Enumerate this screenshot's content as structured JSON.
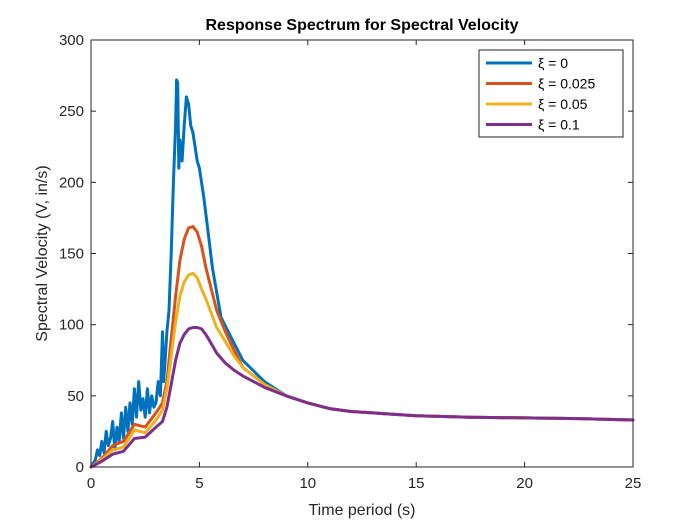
{
  "chart_data": {
    "type": "line",
    "title": "Response Spectrum for Spectral Velocity",
    "xlabel": "Time period (s)",
    "ylabel": "Spectral Velocity (V, in/s)",
    "xlim": [
      0,
      25
    ],
    "ylim": [
      0,
      300
    ],
    "xticks": [
      0,
      5,
      10,
      15,
      20,
      25
    ],
    "yticks": [
      0,
      50,
      100,
      150,
      200,
      250,
      300
    ],
    "grid": false,
    "legend_position": "top-right",
    "series": [
      {
        "name": "ξ = 0",
        "color": "#0072BD",
        "x": [
          0,
          0.2,
          0.3,
          0.4,
          0.5,
          0.6,
          0.7,
          0.8,
          0.9,
          1.0,
          1.1,
          1.2,
          1.3,
          1.4,
          1.5,
          1.6,
          1.7,
          1.8,
          1.9,
          2.0,
          2.1,
          2.2,
          2.3,
          2.4,
          2.5,
          2.6,
          2.7,
          2.8,
          2.9,
          3.0,
          3.1,
          3.2,
          3.3,
          3.35,
          3.4,
          3.5,
          3.6,
          3.7,
          3.8,
          3.9,
          3.95,
          4.0,
          4.05,
          4.1,
          4.2,
          4.3,
          4.4,
          4.5,
          4.6,
          4.7,
          4.8,
          4.9,
          5.0,
          5.2,
          5.4,
          5.6,
          6.0,
          6.5,
          7.0,
          8.0,
          9.0,
          10.0,
          11.0,
          12.0,
          13.0,
          15.0,
          17.5,
          20.0,
          22.5,
          25.0
        ],
        "values": [
          0,
          5,
          12,
          8,
          18,
          10,
          25,
          15,
          20,
          32,
          12,
          28,
          18,
          38,
          20,
          42,
          25,
          45,
          30,
          55,
          35,
          60,
          40,
          48,
          35,
          55,
          38,
          50,
          42,
          45,
          60,
          50,
          95,
          60,
          70,
          95,
          110,
          150,
          200,
          240,
          272,
          270,
          210,
          230,
          215,
          240,
          260,
          255,
          240,
          235,
          225,
          215,
          210,
          190,
          165,
          140,
          105,
          90,
          75,
          60,
          50,
          45,
          41,
          39,
          38,
          36,
          35,
          34.5,
          34,
          33
        ]
      },
      {
        "name": "ξ = 0.025",
        "color": "#D95319",
        "x": [
          0,
          0.5,
          1.0,
          1.5,
          2.0,
          2.5,
          3.0,
          3.3,
          3.5,
          3.7,
          3.9,
          4.1,
          4.3,
          4.5,
          4.7,
          4.9,
          5.1,
          5.3,
          5.5,
          5.8,
          6.2,
          6.6,
          7.0,
          8.0,
          9.0,
          10.0,
          11.0,
          12.0,
          13.0,
          15.0,
          17.5,
          20.0,
          22.5,
          25.0
        ],
        "values": [
          0,
          6,
          15,
          18,
          30,
          28,
          38,
          45,
          60,
          90,
          120,
          145,
          160,
          168,
          169,
          165,
          155,
          140,
          128,
          110,
          95,
          82,
          70,
          58,
          50,
          45,
          41,
          39,
          38,
          36,
          35,
          34.5,
          34,
          33
        ]
      },
      {
        "name": "ξ = 0.05",
        "color": "#EDB120",
        "x": [
          0,
          0.5,
          1.0,
          1.5,
          2.0,
          2.5,
          3.0,
          3.3,
          3.5,
          3.7,
          3.9,
          4.1,
          4.3,
          4.5,
          4.7,
          4.9,
          5.1,
          5.3,
          5.5,
          5.8,
          6.2,
          6.6,
          7.0,
          8.0,
          9.0,
          10.0,
          11.0,
          12.0,
          13.0,
          15.0,
          17.5,
          20.0,
          22.5,
          25.0
        ],
        "values": [
          0,
          5,
          12,
          14,
          26,
          24,
          33,
          40,
          55,
          78,
          102,
          120,
          130,
          135,
          136,
          133,
          125,
          118,
          110,
          98,
          88,
          78,
          70,
          58,
          50,
          45,
          41,
          39,
          38,
          36,
          35,
          34.5,
          34,
          33
        ]
      },
      {
        "name": "ξ = 0.1",
        "color": "#7E2F8E",
        "x": [
          0,
          0.5,
          1.0,
          1.5,
          2.0,
          2.5,
          3.0,
          3.3,
          3.5,
          3.7,
          3.9,
          4.1,
          4.3,
          4.5,
          4.7,
          4.9,
          5.1,
          5.3,
          5.5,
          5.8,
          6.2,
          6.6,
          7.0,
          8.0,
          9.0,
          10.0,
          11.0,
          12.0,
          13.0,
          15.0,
          17.5,
          20.0,
          22.5,
          25.0
        ],
        "values": [
          0,
          4,
          9,
          11,
          20,
          21,
          28,
          32,
          42,
          58,
          75,
          87,
          93,
          97,
          98,
          98,
          97,
          93,
          88,
          80,
          73,
          68,
          64,
          56,
          50,
          45,
          41,
          39,
          38,
          36,
          35,
          34.5,
          34,
          33
        ]
      }
    ]
  }
}
